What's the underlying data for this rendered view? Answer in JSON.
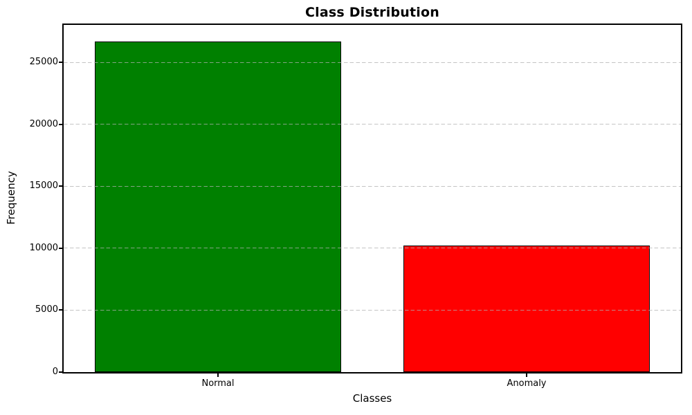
{
  "figure": {
    "background_color": "#ffffff",
    "text_color": "#000000"
  },
  "chart_data": {
    "type": "bar",
    "title": "Class Distribution",
    "xlabel": "Classes",
    "ylabel": "Frequency",
    "categories": [
      "Normal",
      "Anomaly"
    ],
    "values": [
      26700,
      10200
    ],
    "bar_colors": [
      "#008000",
      "#ff0000"
    ],
    "bar_edge_color": "#000000",
    "yticks": [
      0,
      5000,
      10000,
      15000,
      20000,
      25000
    ],
    "ylim": [
      0,
      28035
    ],
    "xlim_units": 2,
    "bar_width_units": 0.8,
    "grid": "horizontal",
    "grid_line_style": "dashed",
    "grid_color": "#b0b0b0",
    "grid_above_bars": true,
    "legend": "none",
    "spines": "full-box"
  }
}
